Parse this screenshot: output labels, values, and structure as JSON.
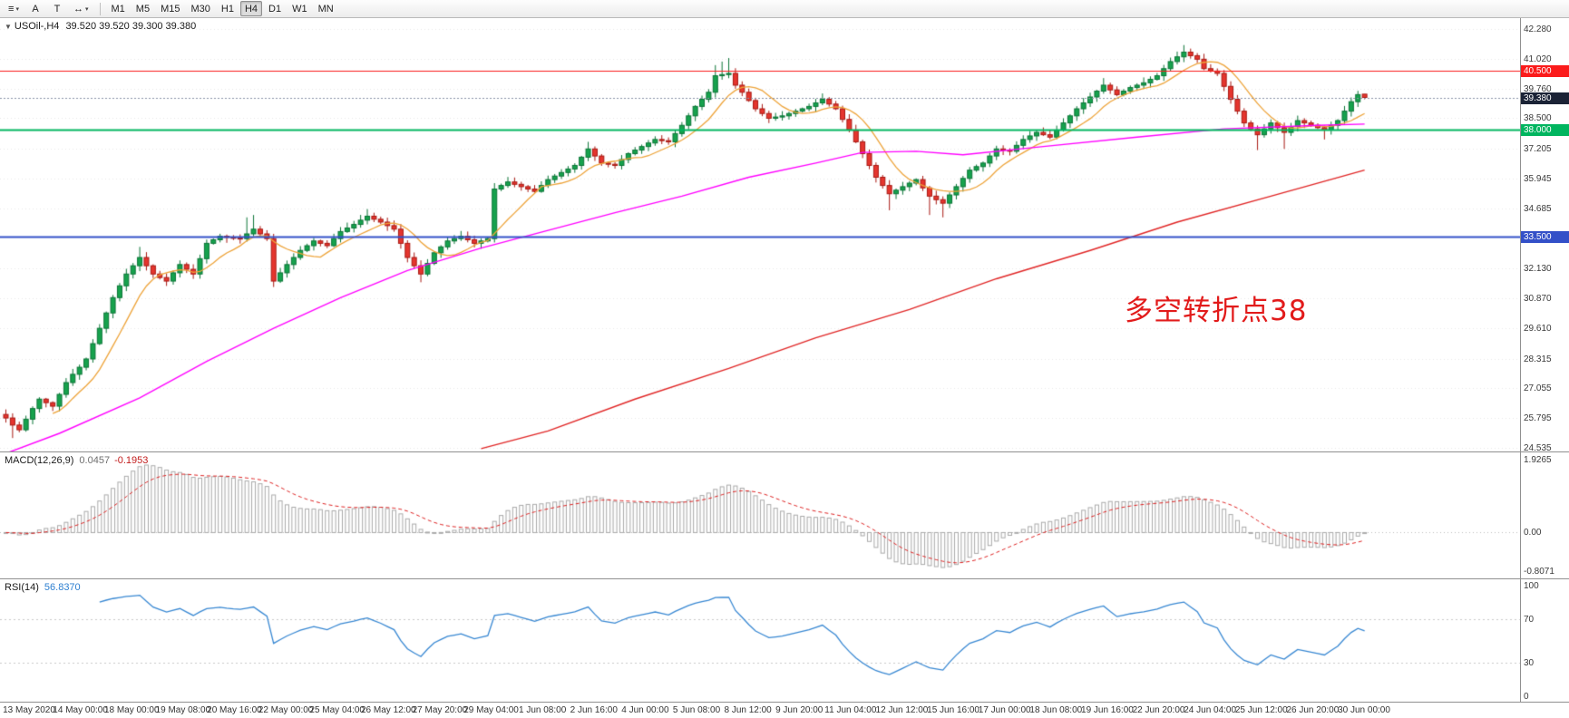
{
  "toolbar": {
    "menu_icon": "≡",
    "dropdown_caret": "▾",
    "tool_a_label": "A",
    "tool_t_label": "T",
    "pointer_icon": "↔",
    "timeframes": [
      {
        "label": "M1",
        "active": false
      },
      {
        "label": "M5",
        "active": false
      },
      {
        "label": "M15",
        "active": false
      },
      {
        "label": "M30",
        "active": false
      },
      {
        "label": "H1",
        "active": false
      },
      {
        "label": "H4",
        "active": true
      },
      {
        "label": "D1",
        "active": false
      },
      {
        "label": "W1",
        "active": false
      },
      {
        "label": "MN",
        "active": false
      }
    ]
  },
  "colors": {
    "bull_fill": "#16a24d",
    "bull_stroke": "#0a7436",
    "bear_fill": "#e5352e",
    "bear_stroke": "#a81812",
    "ma_fast": "#eda339",
    "ma_mid": "#ff00ff",
    "ma_slow": "#e02626",
    "price_badge": "#1b2336",
    "current_line": "#8a93a8",
    "macd_hist": "#a9a9a9",
    "macd_signal": "#dd2222",
    "rsi_line": "#3787d2",
    "rsi_level": "#c8c8c8",
    "grid": "#e8e8e8",
    "axis_text": "#3a3a3a"
  },
  "chart_data": {
    "type": "candlestick",
    "title": "USOil-,H4",
    "ohlc_text": "39.520 39.520 39.300 39.380",
    "annotation": "多空转折点38",
    "y_ticks": [
      {
        "v": 42.28,
        "label": "42.280"
      },
      {
        "v": 41.02,
        "label": "41.020"
      },
      {
        "v": 39.76,
        "label": "39.760"
      },
      {
        "v": 38.5,
        "label": "38.500"
      },
      {
        "v": 37.205,
        "label": "37.205"
      },
      {
        "v": 35.945,
        "label": "35.945"
      },
      {
        "v": 34.685,
        "label": "34.685"
      },
      {
        "v": 32.13,
        "label": "32.130"
      },
      {
        "v": 30.87,
        "label": "30.870"
      },
      {
        "v": 29.61,
        "label": "29.610"
      },
      {
        "v": 28.315,
        "label": "28.315"
      },
      {
        "v": 27.055,
        "label": "27.055"
      },
      {
        "v": 25.795,
        "label": "25.795"
      },
      {
        "v": 24.535,
        "label": "24.535"
      }
    ],
    "levels": [
      {
        "value": 40.5,
        "label": "40.500",
        "color": "#fb1b1b",
        "width": 1
      },
      {
        "value": 38.0,
        "label": "38.000",
        "color": "#00b55f",
        "width": 2
      },
      {
        "value": 33.5,
        "label": "33.500",
        "color": "#3350c8",
        "width": 2
      }
    ],
    "current_price": {
      "value": 39.38,
      "label": "39.380"
    },
    "closes": [
      25.8,
      25.5,
      25.3,
      25.75,
      26.2,
      26.6,
      26.45,
      26.3,
      26.8,
      27.3,
      27.65,
      27.95,
      28.3,
      28.95,
      29.6,
      30.25,
      30.9,
      31.4,
      31.9,
      32.25,
      32.6,
      32.25,
      31.9,
      31.75,
      31.6,
      31.95,
      32.3,
      32.1,
      31.9,
      32.55,
      33.2,
      33.35,
      33.5,
      33.45,
      33.42,
      33.4,
      33.6,
      33.8,
      33.6,
      33.4,
      31.6,
      31.95,
      32.3,
      32.6,
      32.9,
      33.1,
      33.3,
      33.2,
      33.1,
      33.4,
      33.7,
      33.85,
      34.0,
      34.18,
      34.35,
      34.22,
      34.1,
      33.95,
      33.8,
      33.2,
      32.6,
      32.25,
      31.9,
      32.35,
      32.8,
      33.05,
      33.3,
      33.4,
      33.5,
      33.35,
      33.2,
      33.3,
      33.4,
      35.5,
      35.65,
      35.8,
      35.7,
      35.6,
      35.5,
      35.4,
      35.65,
      35.9,
      36.05,
      36.2,
      36.35,
      36.5,
      36.85,
      37.2,
      36.9,
      36.6,
      36.55,
      36.5,
      36.75,
      37.0,
      37.15,
      37.3,
      37.45,
      37.6,
      37.55,
      37.5,
      37.85,
      38.2,
      38.6,
      39.0,
      39.3,
      39.6,
      40.3,
      40.35,
      40.4,
      39.9,
      39.6,
      39.25,
      38.9,
      38.7,
      38.5,
      38.55,
      38.6,
      38.7,
      38.8,
      38.9,
      39.0,
      39.15,
      39.3,
      39.1,
      38.9,
      38.45,
      38.0,
      37.5,
      37.0,
      36.5,
      36.0,
      35.65,
      35.3,
      35.45,
      35.6,
      35.75,
      35.9,
      35.55,
      35.2,
      35.05,
      34.9,
      35.25,
      35.6,
      35.95,
      36.3,
      36.45,
      36.6,
      36.9,
      37.2,
      37.15,
      37.1,
      37.35,
      37.6,
      37.75,
      37.9,
      37.8,
      37.7,
      38.0,
      38.3,
      38.6,
      38.9,
      39.15,
      39.4,
      39.65,
      39.9,
      39.7,
      39.5,
      39.65,
      39.8,
      39.9,
      40.0,
      40.15,
      40.3,
      40.6,
      40.9,
      41.1,
      41.3,
      41.15,
      41.0,
      40.6,
      40.5,
      40.4,
      39.85,
      39.3,
      38.8,
      38.3,
      38.05,
      37.8,
      38.05,
      38.3,
      38.1,
      37.9,
      38.15,
      38.4,
      38.3,
      38.2,
      38.1,
      38.0,
      38.2,
      38.4,
      38.8,
      39.2,
      39.5,
      39.38
    ],
    "last_candle": [
      39.52,
      39.52,
      39.3,
      39.38
    ],
    "wick_overrides": {
      "1": [
        null,
        24.95
      ],
      "20": [
        33.05,
        null
      ],
      "36": [
        34.3,
        null
      ],
      "37": [
        34.4,
        null
      ],
      "40": [
        null,
        31.35
      ],
      "54": [
        34.65,
        null
      ],
      "62": [
        null,
        31.55
      ],
      "73": [
        35.75,
        null
      ],
      "87": [
        37.5,
        null
      ],
      "106": [
        40.75,
        null
      ],
      "107": [
        40.9,
        null
      ],
      "108": [
        41.05,
        null
      ],
      "122": [
        39.55,
        null
      ],
      "132": [
        null,
        34.6
      ],
      "138": [
        null,
        34.4
      ],
      "140": [
        null,
        34.3
      ],
      "164": [
        40.2,
        null
      ],
      "176": [
        41.6,
        null
      ],
      "177": [
        41.45,
        null
      ],
      "187": [
        null,
        37.15
      ],
      "191": [
        null,
        37.2
      ],
      "197": [
        null,
        37.6
      ]
    },
    "moving_averages": {
      "fast_period": 8,
      "mid_anchors": [
        [
          0,
          24.3
        ],
        [
          8,
          25.15
        ],
        [
          20,
          26.65
        ],
        [
          30,
          28.2
        ],
        [
          40,
          29.6
        ],
        [
          50,
          30.9
        ],
        [
          60,
          32.05
        ],
        [
          71,
          33.0
        ],
        [
          81,
          33.75
        ],
        [
          91,
          34.5
        ],
        [
          101,
          35.2
        ],
        [
          111,
          36.0
        ],
        [
          121,
          36.6
        ],
        [
          128,
          37.05
        ],
        [
          136,
          37.1
        ],
        [
          143,
          36.95
        ],
        [
          155,
          37.3
        ],
        [
          169,
          37.7
        ],
        [
          182,
          38.05
        ],
        [
          196,
          38.2
        ],
        [
          203,
          38.25
        ]
      ],
      "slow_anchors": [
        [
          71,
          24.5
        ],
        [
          81,
          25.25
        ],
        [
          94,
          26.6
        ],
        [
          108,
          27.9
        ],
        [
          121,
          29.2
        ],
        [
          135,
          30.4
        ],
        [
          148,
          31.7
        ],
        [
          162,
          32.9
        ],
        [
          175,
          34.1
        ],
        [
          189,
          35.2
        ],
        [
          203,
          36.3
        ]
      ]
    },
    "macd": {
      "label": "MACD(12,26,9)",
      "value_main": "0.0457",
      "value_signal": "-0.1953",
      "fast": 12,
      "slow": 26,
      "signal": 9,
      "axis_top": "1.9265",
      "axis_zero": "0.00",
      "axis_bottom": "-0.8071"
    },
    "rsi": {
      "label": "RSI(14)",
      "value_text": "56.8370",
      "period": 14,
      "levels": [
        70,
        30
      ],
      "axis_labels": [
        {
          "v": 100,
          "label": "100"
        },
        {
          "v": 70,
          "label": "70"
        },
        {
          "v": 30,
          "label": "30"
        },
        {
          "v": 0,
          "label": "0"
        }
      ]
    },
    "x_labels": [
      "13 May 2020",
      "14 May 00:00",
      "18 May 00:00",
      "19 May 08:00",
      "20 May 16:00",
      "22 May 00:00",
      "25 May 04:00",
      "26 May 12:00",
      "27 May 20:00",
      "29 May 04:00",
      "1 Jun 08:00",
      "2 Jun 16:00",
      "4 Jun 00:00",
      "5 Jun 08:00",
      "8 Jun 12:00",
      "9 Jun 20:00",
      "11 Jun 04:00",
      "12 Jun 12:00",
      "15 Jun 16:00",
      "17 Jun 00:00",
      "18 Jun 08:00",
      "19 Jun 16:00",
      "22 Jun 20:00",
      "24 Jun 04:00",
      "25 Jun 12:00",
      "26 Jun 20:00",
      "30 Jun 00:00"
    ]
  }
}
